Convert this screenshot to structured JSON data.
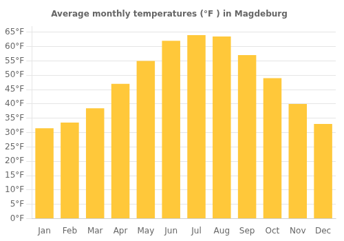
{
  "chart_data": {
    "type": "bar",
    "title": "Average monthly temperatures (°F ) in Magdeburg",
    "categories": [
      "Jan",
      "Feb",
      "Mar",
      "Apr",
      "May",
      "Jun",
      "Jul",
      "Aug",
      "Sep",
      "Oct",
      "Nov",
      "Dec"
    ],
    "values": [
      31.5,
      33.5,
      38.5,
      47.0,
      55.0,
      62.0,
      64.0,
      63.5,
      57.0,
      49.0,
      40.0,
      33.0
    ],
    "color": "#FFC83A",
    "ylim": [
      0,
      67
    ],
    "yticks": [
      {
        "value": 0,
        "label": "0°F"
      },
      {
        "value": 5,
        "label": "5°F"
      },
      {
        "value": 10,
        "label": "10°F"
      },
      {
        "value": 15,
        "label": "15°F"
      },
      {
        "value": 20,
        "label": "20°F"
      },
      {
        "value": 25,
        "label": "25°F"
      },
      {
        "value": 30,
        "label": "30°F"
      },
      {
        "value": 35,
        "label": "35°F"
      },
      {
        "value": 40,
        "label": "40°F"
      },
      {
        "value": 45,
        "label": "45°F"
      },
      {
        "value": 50,
        "label": "50°F"
      },
      {
        "value": 55,
        "label": "55°F"
      },
      {
        "value": 60,
        "label": "60°F"
      },
      {
        "value": 65,
        "label": "65°F"
      }
    ],
    "grid": true
  }
}
